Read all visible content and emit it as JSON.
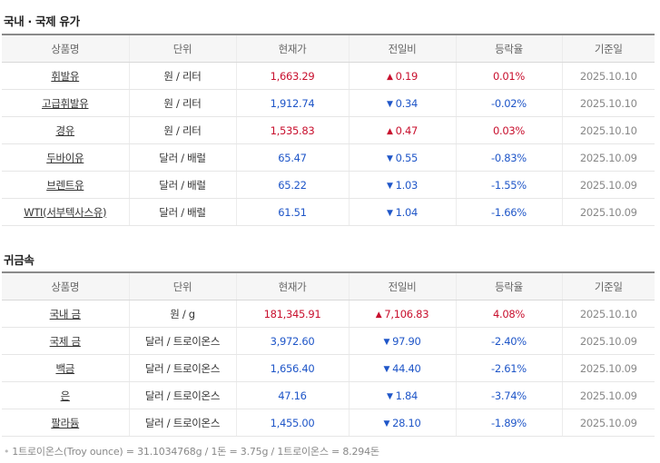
{
  "oil": {
    "title": "국내 · 국제 유가",
    "headers": [
      "상품명",
      "단위",
      "현재가",
      "전일비",
      "등락율",
      "기준일"
    ],
    "rows": [
      {
        "name": "휘발유",
        "unit": "원 / 리터",
        "price": "1,663.29",
        "change": "0.19",
        "dir": "up",
        "rate": "0.01%",
        "date": "2025.10.10"
      },
      {
        "name": "고급휘발유",
        "unit": "원 / 리터",
        "price": "1,912.74",
        "change": "0.34",
        "dir": "down",
        "rate": "-0.02%",
        "date": "2025.10.10"
      },
      {
        "name": "경유",
        "unit": "원 / 리터",
        "price": "1,535.83",
        "change": "0.47",
        "dir": "up",
        "rate": "0.03%",
        "date": "2025.10.10"
      },
      {
        "name": "두바이유",
        "unit": "달러 / 배럴",
        "price": "65.47",
        "change": "0.55",
        "dir": "down",
        "rate": "-0.83%",
        "date": "2025.10.09"
      },
      {
        "name": "브렌트유",
        "unit": "달러 / 배럴",
        "price": "65.22",
        "change": "1.03",
        "dir": "down",
        "rate": "-1.55%",
        "date": "2025.10.09"
      },
      {
        "name": "WTI(서부텍사스유)",
        "unit": "달러 / 배럴",
        "price": "61.51",
        "change": "1.04",
        "dir": "down",
        "rate": "-1.66%",
        "date": "2025.10.09"
      }
    ]
  },
  "metal": {
    "title": "귀금속",
    "headers": [
      "상품명",
      "단위",
      "현재가",
      "전일비",
      "등락율",
      "기준일"
    ],
    "rows": [
      {
        "name": "국내 금",
        "unit": "원 / g",
        "price": "181,345.91",
        "change": "7,106.83",
        "dir": "up",
        "rate": "4.08%",
        "date": "2025.10.10"
      },
      {
        "name": "국제 금",
        "unit": "달러 / 트로이온스",
        "price": "3,972.60",
        "change": "97.90",
        "dir": "down",
        "rate": "-2.40%",
        "date": "2025.10.09"
      },
      {
        "name": "백금",
        "unit": "달러 / 트로이온스",
        "price": "1,656.40",
        "change": "44.40",
        "dir": "down",
        "rate": "-2.61%",
        "date": "2025.10.09"
      },
      {
        "name": "은",
        "unit": "달러 / 트로이온스",
        "price": "47.16",
        "change": "1.84",
        "dir": "down",
        "rate": "-3.74%",
        "date": "2025.10.09"
      },
      {
        "name": "팔라듐",
        "unit": "달러 / 트로이온스",
        "price": "1,455.00",
        "change": "28.10",
        "dir": "down",
        "rate": "-1.89%",
        "date": "2025.10.09"
      }
    ]
  },
  "arrows": {
    "up": "▲",
    "down": "▼"
  },
  "colors": {
    "up": "#c8102e",
    "down": "#1f56c8"
  },
  "footnote": "1트로이온스(Troy ounce) = 31.1034768g / 1돈 = 3.75g / 1트로이온스 = 8.294돈"
}
